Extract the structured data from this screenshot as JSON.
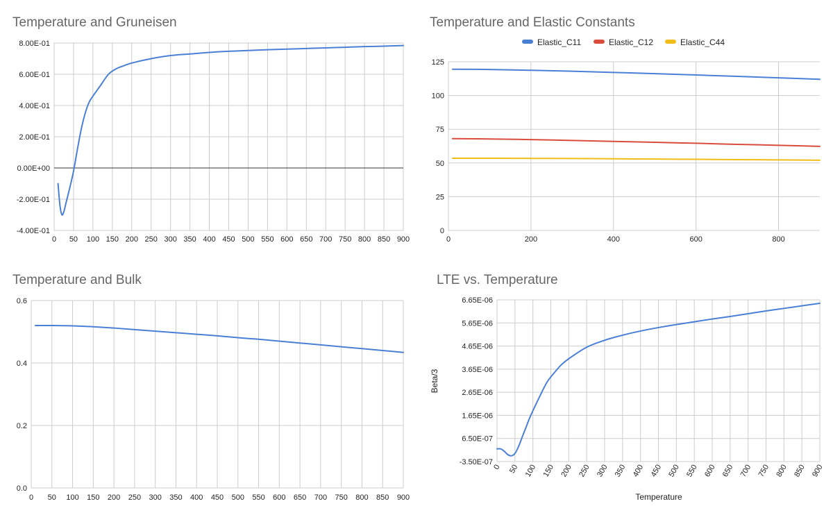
{
  "chart_data": [
    {
      "type": "line",
      "title": "Temperature and Gruneisen",
      "xlabel": "",
      "ylabel": "",
      "xlim": [
        0,
        900
      ],
      "ylim": [
        -0.4,
        0.8
      ],
      "x_ticks": [
        "0",
        "50",
        "100",
        "150",
        "200",
        "250",
        "300",
        "350",
        "400",
        "450",
        "500",
        "550",
        "600",
        "650",
        "700",
        "750",
        "800",
        "850",
        "900"
      ],
      "y_ticks": [
        "-4.00E-01",
        "-2.00E-01",
        "0.00E+00",
        "2.00E-01",
        "4.00E-01",
        "6.00E-01",
        "8.00E-01"
      ],
      "grid": true,
      "zero_line": true,
      "series": [
        {
          "color": "#4a7fd6",
          "x": [
            10,
            15,
            20,
            25,
            30,
            40,
            50,
            60,
            70,
            80,
            90,
            100,
            120,
            140,
            160,
            180,
            200,
            250,
            300,
            350,
            400,
            450,
            500,
            550,
            600,
            650,
            700,
            750,
            800,
            850,
            900
          ],
          "y": [
            -0.1,
            -0.24,
            -0.3,
            -0.28,
            -0.23,
            -0.13,
            -0.02,
            0.12,
            0.25,
            0.35,
            0.42,
            0.46,
            0.53,
            0.6,
            0.635,
            0.655,
            0.672,
            0.7,
            0.72,
            0.73,
            0.74,
            0.747,
            0.752,
            0.757,
            0.761,
            0.765,
            0.769,
            0.773,
            0.777,
            0.78,
            0.784
          ]
        }
      ]
    },
    {
      "type": "line",
      "title": "Temperature and Elastic Constants",
      "xlabel": "",
      "ylabel": "",
      "xlim": [
        0,
        900
      ],
      "ylim": [
        0,
        125
      ],
      "x_ticks": [
        "0",
        "200",
        "400",
        "600",
        "800"
      ],
      "y_ticks": [
        "0",
        "25",
        "50",
        "75",
        "100",
        "125"
      ],
      "grid": true,
      "legend_position": "top",
      "series": [
        {
          "name": "Elastic_C11",
          "color": "#4a7fd6",
          "x": [
            10,
            100,
            200,
            300,
            400,
            500,
            600,
            700,
            800,
            900
          ],
          "y": [
            119.5,
            119.3,
            118.7,
            118.0,
            117.1,
            116.2,
            115.2,
            114.2,
            113.1,
            112.0
          ]
        },
        {
          "name": "Elastic_C12",
          "color": "#d94c3c",
          "x": [
            10,
            100,
            200,
            300,
            400,
            500,
            600,
            700,
            800,
            900
          ],
          "y": [
            68.0,
            67.8,
            67.3,
            66.7,
            66.0,
            65.3,
            64.6,
            63.8,
            63.1,
            62.3
          ]
        },
        {
          "name": "Elastic_C44",
          "color": "#f0bd18",
          "x": [
            10,
            100,
            200,
            300,
            400,
            500,
            600,
            700,
            800,
            900
          ],
          "y": [
            53.5,
            53.5,
            53.4,
            53.3,
            53.1,
            52.9,
            52.7,
            52.5,
            52.3,
            52.0
          ]
        }
      ]
    },
    {
      "type": "line",
      "title": "Temperature and Bulk",
      "xlabel": "",
      "ylabel": "",
      "xlim": [
        0,
        900
      ],
      "ylim": [
        0,
        0.6
      ],
      "x_ticks": [
        "0",
        "50",
        "100",
        "150",
        "200",
        "250",
        "300",
        "350",
        "400",
        "450",
        "500",
        "550",
        "600",
        "650",
        "700",
        "750",
        "800",
        "850",
        "900"
      ],
      "y_ticks": [
        "0.0",
        "0.2",
        "0.4",
        "0.6"
      ],
      "grid": true,
      "series": [
        {
          "color": "#4a7fd6",
          "x": [
            10,
            50,
            100,
            150,
            200,
            250,
            300,
            350,
            400,
            450,
            500,
            550,
            600,
            650,
            700,
            750,
            800,
            850,
            900
          ],
          "y": [
            0.52,
            0.52,
            0.519,
            0.516,
            0.512,
            0.507,
            0.502,
            0.497,
            0.492,
            0.487,
            0.481,
            0.476,
            0.47,
            0.464,
            0.458,
            0.452,
            0.446,
            0.44,
            0.434
          ]
        }
      ]
    },
    {
      "type": "line",
      "title": "LTE vs. Temperature",
      "xlabel": "Temperature",
      "ylabel": "Beta/3",
      "xlim": [
        0,
        900
      ],
      "ylim": [
        -3.5e-07,
        6.65e-06
      ],
      "x_ticks": [
        "0",
        "50",
        "100",
        "150",
        "200",
        "250",
        "300",
        "350",
        "400",
        "450",
        "500",
        "550",
        "600",
        "650",
        "700",
        "750",
        "800",
        "850",
        "900"
      ],
      "y_ticks": [
        "-3.50E-07",
        "6.50E-07",
        "1.65E-06",
        "2.65E-06",
        "3.65E-06",
        "4.65E-06",
        "5.65E-06",
        "6.65E-06"
      ],
      "grid": true,
      "series": [
        {
          "color": "#4a7fd6",
          "x": [
            0,
            10,
            20,
            30,
            40,
            50,
            60,
            70,
            80,
            90,
            100,
            120,
            140,
            160,
            180,
            200,
            250,
            300,
            350,
            400,
            450,
            500,
            550,
            600,
            650,
            700,
            750,
            800,
            850,
            900
          ],
          "y": [
            2e-07,
            2e-07,
            1e-07,
            -5e-08,
            -1e-07,
            0.0,
            3e-07,
            7e-07,
            1.1e-06,
            1.5e-06,
            1.85e-06,
            2.5e-06,
            3.1e-06,
            3.5e-06,
            3.85e-06,
            4.1e-06,
            4.6e-06,
            4.9e-06,
            5.12e-06,
            5.3e-06,
            5.45e-06,
            5.58e-06,
            5.7e-06,
            5.82e-06,
            5.93e-06,
            6.05e-06,
            6.17e-06,
            6.28e-06,
            6.39e-06,
            6.5e-06
          ]
        }
      ]
    }
  ]
}
